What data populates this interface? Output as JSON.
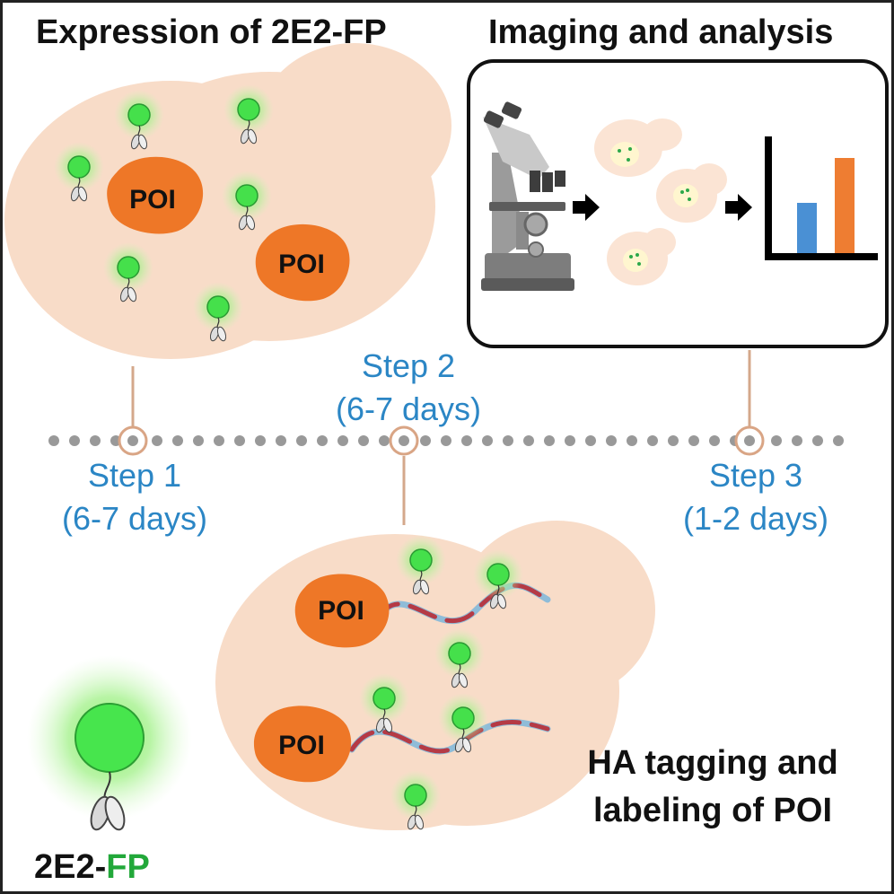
{
  "panels": {
    "expression_title": "Expression of 2E2-FP",
    "imaging_title": "Imaging and analysis",
    "tagging_title_line1": "HA tagging and",
    "tagging_title_line2": "labeling of POI"
  },
  "protein_label": "POI",
  "timeline": {
    "steps": [
      {
        "label": "Step 1",
        "duration": "(6-7 days)"
      },
      {
        "label": "Step 2",
        "duration": "(6-7 days)"
      },
      {
        "label": "Step 3",
        "duration": "(1-2 days)"
      }
    ]
  },
  "legend": {
    "prefix": "2E2-",
    "suffix": "FP"
  },
  "colors": {
    "cell": "#f8dcc8",
    "protein": "#ee7727",
    "fluor": "#3fd54a",
    "glow": "#8fef7a",
    "step_text": "#2b86c5",
    "timeline_dot": "#999999",
    "timeline_ring": "#d9a585",
    "connector": "#d4a88b",
    "bar_blue": "#4a90d4",
    "bar_orange": "#ee7d32",
    "legend_fp": "#22a83a"
  },
  "icons": [
    "microscope-icon",
    "arrow-right-icon",
    "bar-chart-icon",
    "fluorescent-probe-icon",
    "ha-tag-chain-icon"
  ]
}
